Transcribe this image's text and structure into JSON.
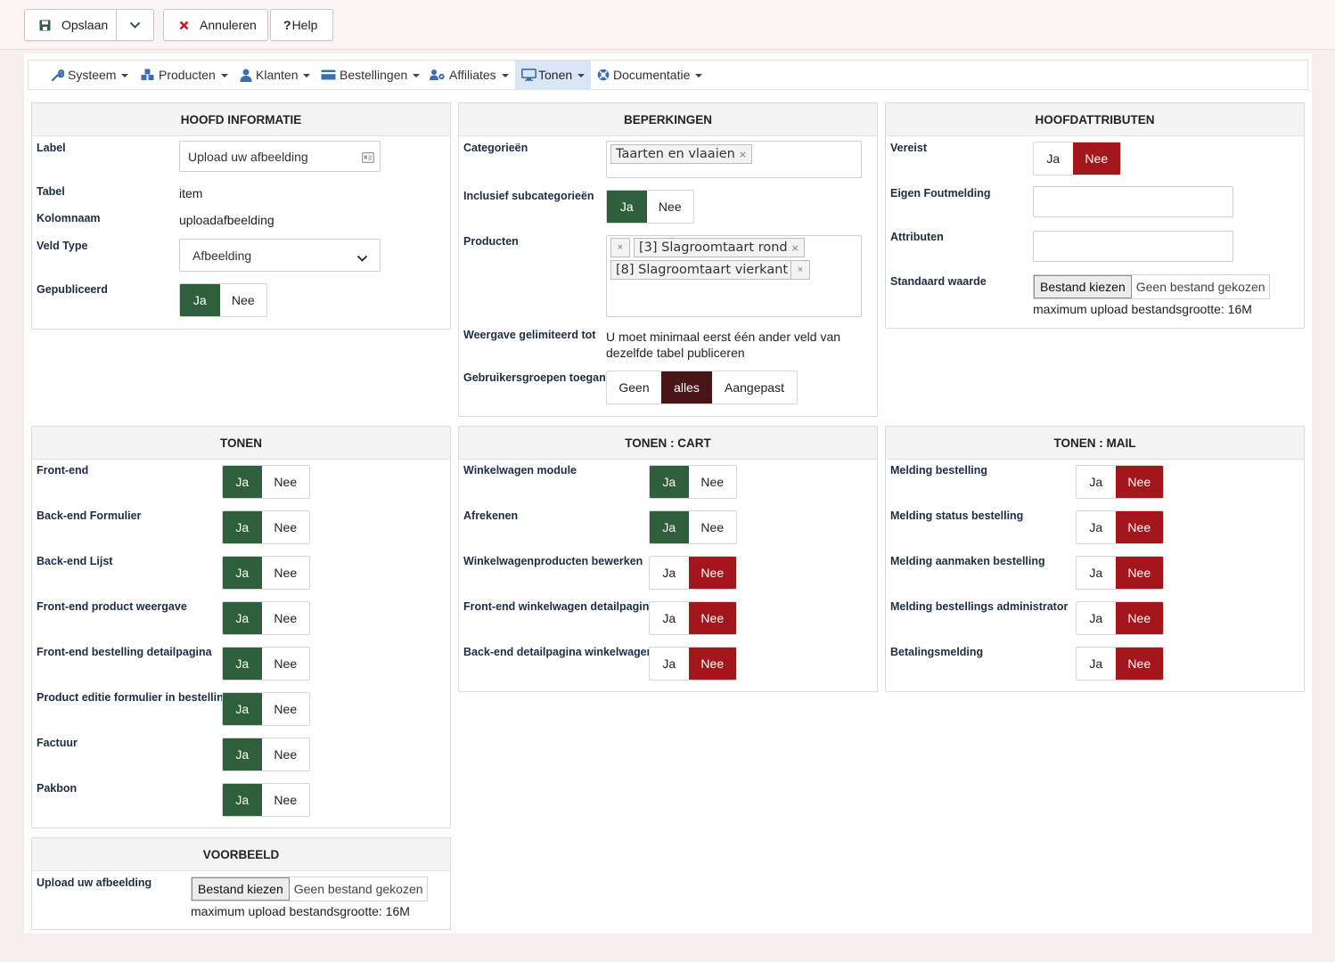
{
  "toolbar": {
    "save": "Opslaan",
    "cancel": "Annuleren",
    "help": "Help"
  },
  "nav": {
    "items": [
      "Systeem",
      "Producten",
      "Klanten",
      "Bestellingen",
      "Affiliates",
      "Tonen",
      "Documentatie"
    ],
    "active": "Tonen"
  },
  "hoofd": {
    "title": "HOOFD INFORMATIE",
    "label_lbl": "Label",
    "label_val": "Upload uw afbeelding",
    "tabel_lbl": "Tabel",
    "tabel_val": "item",
    "kolom_lbl": "Kolomnaam",
    "kolom_val": "uploadafbeelding",
    "veld_lbl": "Veld Type",
    "veld_val": "Afbeelding",
    "gepub_lbl": "Gepubliceerd"
  },
  "beperk": {
    "title": "BEPERKINGEN",
    "cat_lbl": "Categorieën",
    "cat_tag": "Taarten en vlaaien",
    "sub_lbl": "Inclusief subcategorieën",
    "prod_lbl": "Producten",
    "prod_tag1": "[3] Slagroomtaart rond",
    "prod_tag2": "[8] Slagroomtaart vierkant",
    "weerg_lbl": "Weergave gelimiteerd tot",
    "weerg_val1": "U moet minimaal eerst één ander veld van",
    "weerg_val2": "dezelfde tabel publiceren",
    "groep_lbl": "Gebruikersgroepen toegang",
    "groep_opts": [
      "Geen",
      "alles",
      "Aangepast"
    ]
  },
  "attr": {
    "title": "HOOFDATTRIBUTEN",
    "vereist_lbl": "Vereist",
    "fout_lbl": "Eigen Foutmelding",
    "attr_lbl": "Attributen",
    "std_lbl": "Standaard waarde",
    "file_btn": "Bestand kiezen",
    "file_txt": "Geen bestand gekozen",
    "max": "maximum upload bestandsgrootte: 16M"
  },
  "yes": "Ja",
  "no": "Nee",
  "tonen": {
    "title": "TONEN",
    "rows": [
      "Front-end",
      "Back-end Formulier",
      "Back-end Lijst",
      "Front-end product weergave",
      "Front-end bestelling detailpagina",
      "Product editie formulier in bestelling",
      "Factuur",
      "Pakbon"
    ]
  },
  "cart": {
    "title": "TONEN : CART",
    "rows": [
      "Winkelwagen module",
      "Afrekenen",
      "Winkelwagenproducten bewerken",
      "Front-end winkelwagen detailpagina",
      "Back-end detailpagina winkelwagen"
    ],
    "states": [
      "ja",
      "ja",
      "nee",
      "nee",
      "nee"
    ]
  },
  "mail": {
    "title": "TONEN : MAIL",
    "rows": [
      "Melding bestelling",
      "Melding status bestelling",
      "Melding aanmaken bestelling",
      "Melding bestellings administrator",
      "Betalingsmelding"
    ]
  },
  "voorbeeld": {
    "title": "VOORBEELD",
    "lbl": "Upload uw afbeelding",
    "file_btn": "Bestand kiezen",
    "file_txt": "Geen bestand gekozen",
    "max": "maximum upload bestandsgrootte: 16M"
  },
  "colors": {
    "green": "#2f5f3c",
    "red": "#a3171c",
    "maroon": "#4a1518",
    "active_nav": "#d8e6f6"
  }
}
